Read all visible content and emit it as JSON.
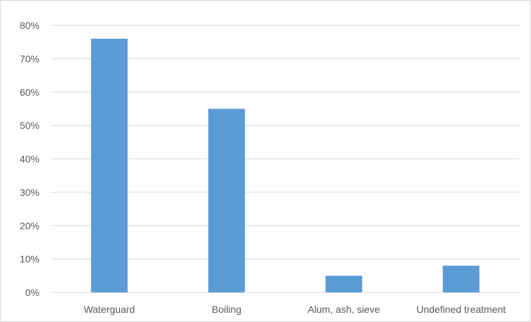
{
  "chart_data": {
    "type": "bar",
    "categories": [
      "Waterguard",
      "Boiling",
      "Alum, ash, sieve",
      "Undefined treatment"
    ],
    "values": [
      76,
      55,
      5,
      8
    ],
    "ylim": [
      0,
      80
    ],
    "y_ticks": [
      "0%",
      "10%",
      "20%",
      "30%",
      "40%",
      "50%",
      "60%",
      "70%",
      "80%"
    ],
    "y_unit": "%",
    "title": "",
    "xlabel": "",
    "ylabel": "",
    "grid": true,
    "legend": "none",
    "bar_color": "#5b9bd5",
    "grid_color": "#d9d9d9",
    "text_color": "#595959"
  }
}
